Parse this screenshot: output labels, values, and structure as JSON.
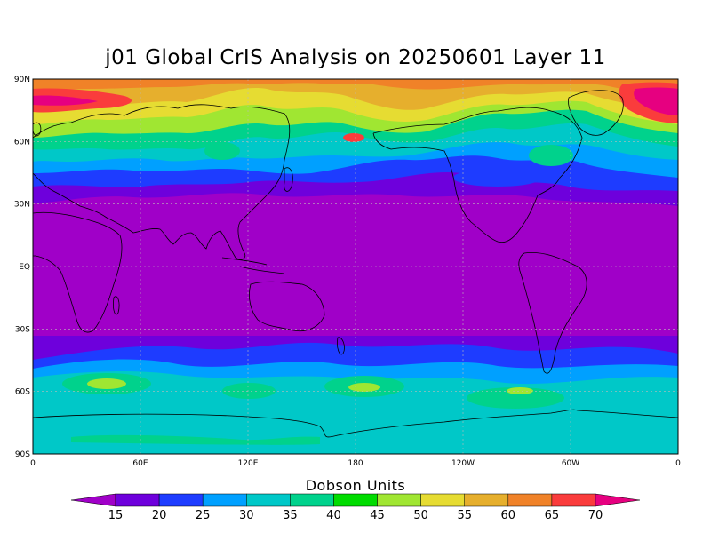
{
  "title": "j01 Global CrIS Analysis on 20250601 Layer 11",
  "colorbar": {
    "title": "Dobson Units",
    "ticks": [
      "15",
      "20",
      "25",
      "30",
      "35",
      "40",
      "45",
      "50",
      "55",
      "60",
      "65",
      "70"
    ],
    "colors": [
      "#a000c8",
      "#6e00dc",
      "#1e3cff",
      "#00a0ff",
      "#00c8c8",
      "#00d28c",
      "#00dc00",
      "#a0e632",
      "#e6dc32",
      "#e6af2d",
      "#f08228",
      "#fa3c3c",
      "#e60080"
    ]
  },
  "map": {
    "lat_labels": [
      "90N",
      "60N",
      "30N",
      "EQ",
      "30S",
      "60S",
      "90S"
    ],
    "lon_labels": [
      "0",
      "60E",
      "120E",
      "180",
      "120W",
      "60W",
      "0"
    ],
    "ocean_fill": "#a000c8",
    "gridline_color": "#bbbbbb"
  }
}
